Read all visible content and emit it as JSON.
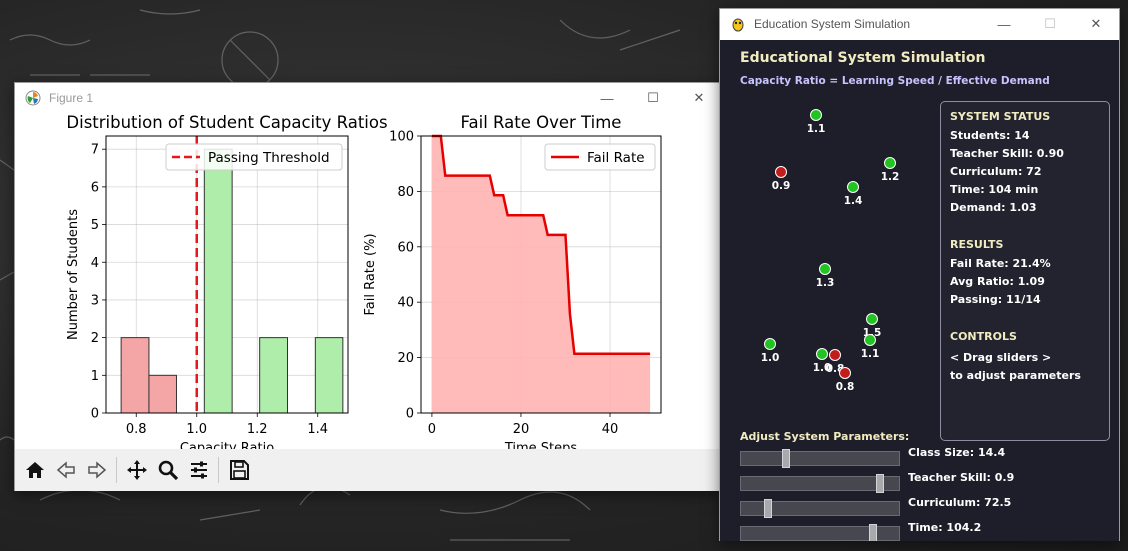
{
  "figure_window": {
    "title": "Figure 1",
    "controls": {
      "minimize": "—",
      "maximize": "☐",
      "close": "✕"
    },
    "toolbar": [
      "home-icon",
      "back-icon",
      "forward-icon",
      "pan-icon",
      "zoom-icon",
      "configure-subplots-icon",
      "save-icon"
    ]
  },
  "chart_data": [
    {
      "type": "bar",
      "title": "Distribution of Student Capacity Ratios",
      "xlabel": "Capacity Ratio",
      "ylabel": "Number of Students",
      "bins": [
        {
          "left": 0.75,
          "right": 0.842,
          "count": 2,
          "color": "#f4a6a6"
        },
        {
          "left": 0.842,
          "right": 0.933,
          "count": 1,
          "color": "#f4a6a6"
        },
        {
          "left": 1.025,
          "right": 1.117,
          "count": 7,
          "color": "#aeeeaa"
        },
        {
          "left": 1.208,
          "right": 1.3,
          "count": 2,
          "color": "#aeeeaa"
        },
        {
          "left": 1.392,
          "right": 1.483,
          "count": 2,
          "color": "#aeeeaa"
        }
      ],
      "xlim": [
        0.7,
        1.5
      ],
      "ylim": [
        0,
        7.35
      ],
      "xticks": [
        "0.8",
        "1.0",
        "1.2",
        "1.4"
      ],
      "yticks": [
        "0",
        "1",
        "2",
        "3",
        "4",
        "5",
        "6",
        "7"
      ],
      "threshold": 1.0,
      "legend": [
        "Passing Threshold"
      ],
      "legend_position": "upper right",
      "threshold_color": "#e31a1c"
    },
    {
      "type": "area",
      "title": "Fail Rate Over Time",
      "xlabel": "Time Steps",
      "ylabel": "Fail Rate (%)",
      "x": [
        0,
        2,
        3,
        13,
        14,
        16,
        17,
        25,
        26,
        30,
        31,
        32,
        49
      ],
      "y": [
        100,
        100,
        85.7,
        85.7,
        78.6,
        78.6,
        71.4,
        71.4,
        64.3,
        64.3,
        35.7,
        21.4,
        21.4
      ],
      "xlim": [
        -2.45,
        51.45
      ],
      "ylim": [
        0,
        100
      ],
      "xticks": [
        "0",
        "20",
        "40"
      ],
      "yticks": [
        "0",
        "20",
        "40",
        "60",
        "80",
        "100"
      ],
      "legend": [
        "Fail Rate"
      ],
      "legend_position": "upper right",
      "line_color": "#e60000",
      "fill_color": "#ffb3b3"
    }
  ],
  "sim_window": {
    "title": "Education System Simulation",
    "controls": {
      "minimize": "—",
      "maximize": "☐",
      "close": "✕"
    },
    "heading": "Educational System Simulation",
    "subtitle": "Capacity Ratio = Learning Speed / Effective Demand",
    "students": [
      {
        "label": "1.1",
        "status": "pass"
      },
      {
        "label": "0.9",
        "status": "fail"
      },
      {
        "label": "1.2",
        "status": "pass"
      },
      {
        "label": "1.4",
        "status": "pass"
      },
      {
        "label": "1.3",
        "status": "pass"
      },
      {
        "label": "1.5",
        "status": "pass"
      },
      {
        "label": "1.1",
        "status": "pass"
      },
      {
        "label": "1.0",
        "status": "pass"
      },
      {
        "label": "1.0",
        "status": "pass"
      },
      {
        "label": "0.8",
        "status": "fail"
      },
      {
        "label": "0.8",
        "status": "fail"
      }
    ],
    "colors": {
      "pass": "#22c322",
      "fail": "#c21d1d"
    },
    "status_panel": {
      "system_heading": "SYSTEM STATUS",
      "students": "Students: 14",
      "teacher_skill": "Teacher Skill: 0.90",
      "curriculum": "Curriculum: 72",
      "time": "Time: 104 min",
      "demand": "Demand: 1.03",
      "results_heading": "RESULTS",
      "fail_rate": "Fail Rate: 21.4%",
      "avg_ratio": "Avg Ratio: 1.09",
      "passing": "Passing: 11/14",
      "controls_heading": "CONTROLS",
      "controls_line1": "< Drag sliders >",
      "controls_line2": "to adjust parameters"
    },
    "params_heading": "Adjust System Parameters:",
    "sliders": [
      {
        "label": "Class Size: 14.4",
        "fraction": 0.27
      },
      {
        "label": "Teacher Skill: 0.9",
        "fraction": 0.9
      },
      {
        "label": "Curriculum: 72.5",
        "fraction": 0.15
      },
      {
        "label": "Time: 104.2",
        "fraction": 0.85
      }
    ]
  }
}
